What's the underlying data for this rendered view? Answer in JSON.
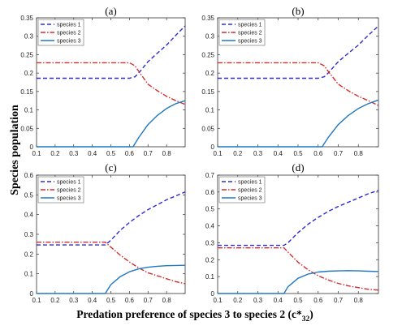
{
  "figure": {
    "ylabel": "Species population",
    "xlabel_prefix": "Predation preference of species 3 to species 2 (c*",
    "xlabel_sub": "32",
    "xlabel_suffix": ")",
    "colors": {
      "species1": "#2b2bd6",
      "species2": "#d62b2b",
      "species3": "#1f78c1"
    }
  },
  "legend_labels": [
    "species 1",
    "species 2",
    "species 3"
  ],
  "chart_data": [
    {
      "type": "line",
      "title": "(a)",
      "xlim": [
        0.1,
        0.9
      ],
      "ylim": [
        0,
        0.35
      ],
      "xticks": [
        "0.1",
        "0.2",
        "0.3",
        "0.4",
        "0.5",
        "0.6",
        "0.7",
        "0.8"
      ],
      "yticks": [
        "0",
        "0.05",
        "0.1",
        "0.15",
        "0.2",
        "0.25",
        "0.3",
        "0.35"
      ],
      "legend_position": "top-left",
      "series": [
        {
          "name": "species 1",
          "style": "dashed",
          "points": [
            [
              0.1,
              0.186
            ],
            [
              0.6,
              0.186
            ],
            [
              0.63,
              0.19
            ],
            [
              0.65,
              0.2
            ],
            [
              0.7,
              0.231
            ],
            [
              0.75,
              0.254
            ],
            [
              0.8,
              0.276
            ],
            [
              0.85,
              0.303
            ],
            [
              0.9,
              0.328
            ]
          ]
        },
        {
          "name": "species 2",
          "style": "dash-dot",
          "points": [
            [
              0.1,
              0.228
            ],
            [
              0.6,
              0.228
            ],
            [
              0.63,
              0.22
            ],
            [
              0.65,
              0.205
            ],
            [
              0.7,
              0.17
            ],
            [
              0.75,
              0.152
            ],
            [
              0.8,
              0.137
            ],
            [
              0.85,
              0.125
            ],
            [
              0.9,
              0.115
            ]
          ]
        },
        {
          "name": "species 3",
          "style": "solid",
          "points": [
            [
              0.1,
              0
            ],
            [
              0.62,
              0
            ],
            [
              0.65,
              0.025
            ],
            [
              0.7,
              0.06
            ],
            [
              0.75,
              0.085
            ],
            [
              0.8,
              0.104
            ],
            [
              0.85,
              0.117
            ],
            [
              0.9,
              0.125
            ]
          ]
        }
      ]
    },
    {
      "type": "line",
      "title": "(b)",
      "xlim": [
        0.1,
        0.9
      ],
      "ylim": [
        0,
        0.35
      ],
      "xticks": [
        "0.1",
        "0.2",
        "0.3",
        "0.4",
        "0.5",
        "0.6",
        "0.7",
        "0.8"
      ],
      "yticks": [
        "0",
        "0.05",
        "0.1",
        "0.15",
        "0.2",
        "0.25",
        "0.3",
        "0.35"
      ],
      "legend_position": "top-left",
      "series": [
        {
          "name": "species 1",
          "style": "dashed",
          "points": [
            [
              0.1,
              0.186
            ],
            [
              0.6,
              0.186
            ],
            [
              0.63,
              0.19
            ],
            [
              0.65,
              0.2
            ],
            [
              0.7,
              0.231
            ],
            [
              0.75,
              0.254
            ],
            [
              0.8,
              0.276
            ],
            [
              0.85,
              0.303
            ],
            [
              0.9,
              0.328
            ]
          ]
        },
        {
          "name": "species 2",
          "style": "dash-dot",
          "points": [
            [
              0.1,
              0.228
            ],
            [
              0.6,
              0.228
            ],
            [
              0.63,
              0.22
            ],
            [
              0.65,
              0.205
            ],
            [
              0.7,
              0.17
            ],
            [
              0.75,
              0.152
            ],
            [
              0.8,
              0.137
            ],
            [
              0.85,
              0.125
            ],
            [
              0.9,
              0.112
            ]
          ]
        },
        {
          "name": "species 3",
          "style": "solid",
          "points": [
            [
              0.1,
              0
            ],
            [
              0.62,
              0
            ],
            [
              0.65,
              0.025
            ],
            [
              0.7,
              0.06
            ],
            [
              0.75,
              0.085
            ],
            [
              0.8,
              0.104
            ],
            [
              0.85,
              0.117
            ],
            [
              0.9,
              0.127
            ]
          ]
        }
      ]
    },
    {
      "type": "line",
      "title": "(c)",
      "xlim": [
        0.1,
        0.9
      ],
      "ylim": [
        0,
        0.6
      ],
      "xticks": [
        "0.1",
        "0.2",
        "0.3",
        "0.4",
        "0.5",
        "0.6",
        "0.7",
        "0.8"
      ],
      "yticks": [
        "0",
        "0.1",
        "0.2",
        "0.3",
        "0.4",
        "0.5",
        "0.6"
      ],
      "legend_position": "top-left",
      "series": [
        {
          "name": "species 1",
          "style": "dashed",
          "points": [
            [
              0.1,
              0.246
            ],
            [
              0.47,
              0.246
            ],
            [
              0.5,
              0.27
            ],
            [
              0.55,
              0.32
            ],
            [
              0.6,
              0.36
            ],
            [
              0.65,
              0.395
            ],
            [
              0.7,
              0.425
            ],
            [
              0.75,
              0.45
            ],
            [
              0.8,
              0.475
            ],
            [
              0.85,
              0.495
            ],
            [
              0.9,
              0.515
            ]
          ]
        },
        {
          "name": "species 2",
          "style": "dash-dot",
          "points": [
            [
              0.1,
              0.26
            ],
            [
              0.47,
              0.26
            ],
            [
              0.5,
              0.235
            ],
            [
              0.55,
              0.195
            ],
            [
              0.6,
              0.16
            ],
            [
              0.65,
              0.13
            ],
            [
              0.7,
              0.105
            ],
            [
              0.75,
              0.09
            ],
            [
              0.8,
              0.075
            ],
            [
              0.85,
              0.06
            ],
            [
              0.9,
              0.05
            ]
          ]
        },
        {
          "name": "species 3",
          "style": "solid",
          "points": [
            [
              0.1,
              0
            ],
            [
              0.47,
              0
            ],
            [
              0.5,
              0.045
            ],
            [
              0.55,
              0.085
            ],
            [
              0.6,
              0.11
            ],
            [
              0.65,
              0.125
            ],
            [
              0.7,
              0.133
            ],
            [
              0.75,
              0.138
            ],
            [
              0.8,
              0.141
            ],
            [
              0.85,
              0.142
            ],
            [
              0.9,
              0.143
            ]
          ]
        }
      ]
    },
    {
      "type": "line",
      "title": "(d)",
      "xlim": [
        0.1,
        0.9
      ],
      "ylim": [
        0,
        0.7
      ],
      "xticks": [
        "0.1",
        "0.2",
        "0.3",
        "0.4",
        "0.5",
        "0.6",
        "0.7",
        "0.8"
      ],
      "yticks": [
        "0",
        "0.1",
        "0.2",
        "0.3",
        "0.4",
        "0.5",
        "0.6",
        "0.7"
      ],
      "legend_position": "top-left",
      "series": [
        {
          "name": "species 1",
          "style": "dashed",
          "points": [
            [
              0.1,
              0.285
            ],
            [
              0.43,
              0.285
            ],
            [
              0.45,
              0.3
            ],
            [
              0.5,
              0.36
            ],
            [
              0.55,
              0.41
            ],
            [
              0.6,
              0.45
            ],
            [
              0.65,
              0.485
            ],
            [
              0.7,
              0.515
            ],
            [
              0.75,
              0.54
            ],
            [
              0.8,
              0.565
            ],
            [
              0.85,
              0.59
            ],
            [
              0.9,
              0.61
            ]
          ]
        },
        {
          "name": "species 2",
          "style": "dash-dot",
          "points": [
            [
              0.1,
              0.27
            ],
            [
              0.43,
              0.27
            ],
            [
              0.45,
              0.245
            ],
            [
              0.5,
              0.185
            ],
            [
              0.55,
              0.14
            ],
            [
              0.6,
              0.105
            ],
            [
              0.65,
              0.08
            ],
            [
              0.7,
              0.06
            ],
            [
              0.75,
              0.045
            ],
            [
              0.8,
              0.035
            ],
            [
              0.85,
              0.025
            ],
            [
              0.9,
              0.02
            ]
          ]
        },
        {
          "name": "species 3",
          "style": "solid",
          "points": [
            [
              0.1,
              0
            ],
            [
              0.43,
              0
            ],
            [
              0.45,
              0.04
            ],
            [
              0.5,
              0.09
            ],
            [
              0.55,
              0.115
            ],
            [
              0.6,
              0.127
            ],
            [
              0.65,
              0.132
            ],
            [
              0.7,
              0.134
            ],
            [
              0.75,
              0.135
            ],
            [
              0.8,
              0.134
            ],
            [
              0.85,
              0.132
            ],
            [
              0.9,
              0.13
            ]
          ]
        }
      ]
    }
  ]
}
